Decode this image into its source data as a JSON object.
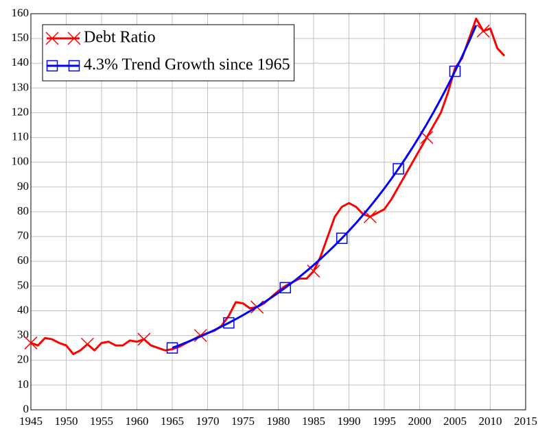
{
  "chart_data": {
    "type": "line",
    "x": [
      1945,
      1946,
      1947,
      1948,
      1949,
      1950,
      1951,
      1952,
      1953,
      1954,
      1955,
      1956,
      1957,
      1958,
      1959,
      1960,
      1961,
      1962,
      1963,
      1964,
      1965,
      1966,
      1967,
      1968,
      1969,
      1970,
      1971,
      1972,
      1973,
      1974,
      1975,
      1976,
      1977,
      1978,
      1979,
      1980,
      1981,
      1982,
      1983,
      1984,
      1985,
      1986,
      1987,
      1988,
      1989,
      1990,
      1991,
      1992,
      1993,
      1994,
      1995,
      1996,
      1997,
      1998,
      1999,
      2000,
      2001,
      2002,
      2003,
      2004,
      2005,
      2006,
      2007,
      2008,
      2009,
      2010,
      2011,
      2012
    ],
    "series": [
      {
        "name": "Debt Ratio",
        "color": "#ff0000",
        "marker": "x",
        "values": [
          27,
          26,
          29,
          28.5,
          27,
          26,
          22.5,
          24,
          26.5,
          24,
          27,
          27.5,
          26,
          26,
          28,
          27.5,
          28.5,
          26,
          25,
          24,
          24.5,
          25.5,
          27,
          28.5,
          30,
          31,
          32,
          34,
          38,
          43.5,
          43,
          41,
          41.5,
          43,
          45.5,
          48,
          50,
          51.5,
          53,
          53,
          56,
          62,
          70,
          78,
          82,
          83.5,
          82,
          79,
          78,
          79.5,
          81,
          85,
          90,
          95,
          100,
          105,
          110,
          115,
          120,
          128,
          138,
          142,
          150,
          158,
          153,
          154,
          146,
          143
        ]
      },
      {
        "name": "4.3% Trend Growth since 1965",
        "color": "#0000ff",
        "marker": "square",
        "values": [
          null,
          null,
          null,
          null,
          null,
          null,
          null,
          null,
          null,
          null,
          null,
          null,
          null,
          null,
          null,
          null,
          null,
          null,
          null,
          null,
          25,
          26.09,
          27.22,
          28.4,
          29.63,
          30.92,
          32.26,
          33.66,
          35.12,
          36.64,
          38.23,
          39.89,
          41.62,
          43.43,
          45.31,
          47.28,
          49.33,
          51.47,
          53.7,
          56.03,
          58.46,
          61,
          63.65,
          66.41,
          69.29,
          72.3,
          75.44,
          78.71,
          82.13,
          85.69,
          89.41,
          93.29,
          97.34,
          101.56,
          105.97,
          110.57,
          115.37,
          120.37,
          125.6,
          131.05,
          136.74,
          142.67,
          148.86,
          155.32,
          null,
          null,
          null,
          null
        ]
      }
    ],
    "xlim": [
      1945,
      2015
    ],
    "xticks": [
      1945,
      1950,
      1955,
      1960,
      1965,
      1970,
      1975,
      1980,
      1985,
      1990,
      1995,
      2000,
      2005,
      2010,
      2015
    ],
    "ylim": [
      0,
      160
    ],
    "yticks": [
      0,
      10,
      20,
      30,
      40,
      50,
      60,
      70,
      80,
      90,
      100,
      110,
      120,
      130,
      140,
      150,
      160
    ],
    "grid": true,
    "legend": "upper left"
  }
}
